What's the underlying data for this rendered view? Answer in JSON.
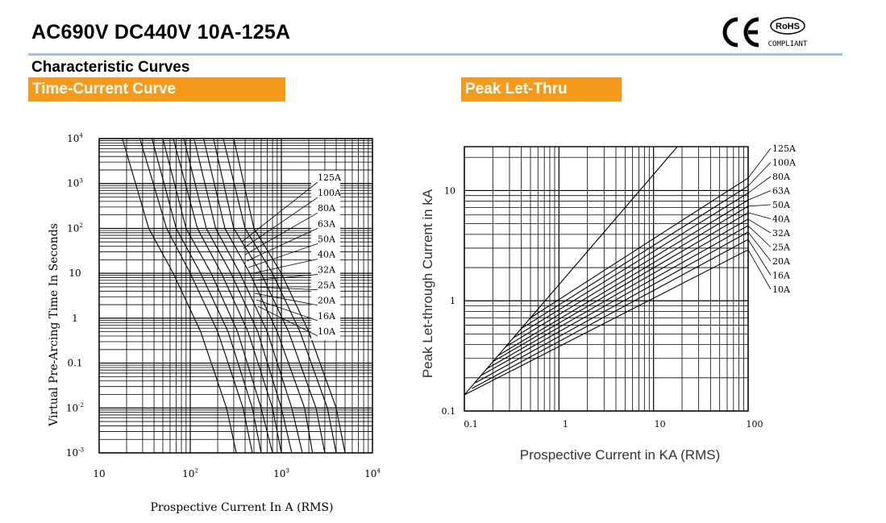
{
  "header": {
    "title": "AC690V DC440V 10A-125A",
    "ce_mark": "CE",
    "rohs_label": "RoHS",
    "compliant_label": "COMPLIANT",
    "rule_color": "#9fc2ea"
  },
  "section": {
    "title": "Characteristic Curves",
    "tab_left": "Time-Current Curve",
    "tab_right": "Peak Let-Thru",
    "tab_color": "#f59a1b"
  },
  "chart_data": [
    {
      "type": "line",
      "title": "Time-Current Curve",
      "xlabel": "Prospective Current In A (RMS)",
      "ylabel": "Virtual Pre-Arcing Time In Seconds",
      "x_scale": "log",
      "y_scale": "log",
      "xlim": [
        10,
        10000
      ],
      "ylim": [
        0.001,
        10000
      ],
      "x_tick_labels": [
        {
          "base": "10",
          "exp": ""
        },
        {
          "base": "10",
          "exp": "2"
        },
        {
          "base": "10",
          "exp": "3"
        },
        {
          "base": "10",
          "exp": "4"
        }
      ],
      "y_tick_labels": [
        {
          "base": "10",
          "exp": "4"
        },
        {
          "base": "10",
          "exp": "3"
        },
        {
          "base": "10",
          "exp": "2"
        },
        {
          "base": "10",
          "exp": ""
        },
        {
          "base": "1",
          "exp": ""
        },
        {
          "base": "0.1",
          "exp": ""
        },
        {
          "base": "10",
          "exp": "-2"
        },
        {
          "base": "10",
          "exp": "-3"
        }
      ],
      "grid": true,
      "legend_box": true,
      "series": [
        {
          "name": "125A",
          "points": [
            [
              300,
              10000
            ],
            [
              500,
              100
            ],
            [
              1000,
              10
            ],
            [
              2000,
              0.5
            ],
            [
              4000,
              0.01
            ],
            [
              5000,
              0.001
            ]
          ]
        },
        {
          "name": "100A",
          "points": [
            [
              230,
              10000
            ],
            [
              400,
              100
            ],
            [
              800,
              10
            ],
            [
              1600,
              0.5
            ],
            [
              3200,
              0.01
            ],
            [
              4000,
              0.001
            ]
          ]
        },
        {
          "name": "80A",
          "points": [
            [
              180,
              10000
            ],
            [
              300,
              100
            ],
            [
              600,
              10
            ],
            [
              1200,
              0.5
            ],
            [
              2400,
              0.01
            ],
            [
              3000,
              0.001
            ]
          ]
        },
        {
          "name": "63A",
          "points": [
            [
              140,
              10000
            ],
            [
              240,
              100
            ],
            [
              450,
              10
            ],
            [
              900,
              0.5
            ],
            [
              1800,
              0.01
            ],
            [
              2200,
              0.001
            ]
          ]
        },
        {
          "name": "50A",
          "points": [
            [
              110,
              10000
            ],
            [
              190,
              100
            ],
            [
              350,
              10
            ],
            [
              700,
              0.5
            ],
            [
              1300,
              0.01
            ],
            [
              1700,
              0.001
            ]
          ]
        },
        {
          "name": "40A",
          "points": [
            [
              85,
              10000
            ],
            [
              150,
              100
            ],
            [
              280,
              10
            ],
            [
              550,
              0.5
            ],
            [
              1000,
              0.01
            ],
            [
              1300,
              0.001
            ]
          ]
        },
        {
          "name": "32A",
          "points": [
            [
              65,
              10000
            ],
            [
              120,
              100
            ],
            [
              220,
              10
            ],
            [
              430,
              0.5
            ],
            [
              800,
              0.01
            ],
            [
              1000,
              0.001
            ]
          ]
        },
        {
          "name": "25A",
          "points": [
            [
              50,
              10000
            ],
            [
              90,
              100
            ],
            [
              170,
              10
            ],
            [
              330,
              0.5
            ],
            [
              600,
              0.01
            ],
            [
              800,
              0.001
            ]
          ]
        },
        {
          "name": "20A",
          "points": [
            [
              38,
              10000
            ],
            [
              70,
              100
            ],
            [
              130,
              10
            ],
            [
              260,
              0.5
            ],
            [
              480,
              0.01
            ],
            [
              600,
              0.001
            ]
          ]
        },
        {
          "name": "16A",
          "points": [
            [
              28,
              10000
            ],
            [
              55,
              100
            ],
            [
              100,
              10
            ],
            [
              200,
              0.5
            ],
            [
              380,
              0.01
            ],
            [
              480,
              0.001
            ]
          ]
        },
        {
          "name": "10A",
          "points": [
            [
              18,
              10000
            ],
            [
              35,
              100
            ],
            [
              65,
              10
            ],
            [
              130,
              0.5
            ],
            [
              250,
              0.01
            ],
            [
              320,
              0.001
            ]
          ]
        }
      ]
    },
    {
      "type": "line",
      "title": "Peak Let-Thru",
      "xlabel": "Prospective Current in KA (RMS)",
      "ylabel": "Peak Let-through Current in kA",
      "x_scale": "log",
      "y_scale": "log",
      "xlim": [
        0.1,
        100
      ],
      "ylim": [
        0.1,
        25
      ],
      "x_tick_labels": [
        "0.1",
        "1",
        "10",
        "100"
      ],
      "y_tick_labels": [
        "10",
        "1",
        "0.1"
      ],
      "grid": true,
      "diagonal": [
        [
          0.1,
          0.14
        ],
        [
          20,
          28
        ]
      ],
      "series": [
        {
          "name": "125A",
          "points": [
            [
              0.5,
              0.7
            ],
            [
              100,
              13
            ]
          ]
        },
        {
          "name": "100A",
          "points": [
            [
              0.4,
              0.56
            ],
            [
              100,
              11
            ]
          ]
        },
        {
          "name": "80A",
          "points": [
            [
              0.33,
              0.46
            ],
            [
              100,
              9.5
            ]
          ]
        },
        {
          "name": "63A",
          "points": [
            [
              0.27,
              0.38
            ],
            [
              100,
              8.2
            ]
          ]
        },
        {
          "name": "50A",
          "points": [
            [
              0.23,
              0.32
            ],
            [
              100,
              7.2
            ]
          ]
        },
        {
          "name": "40A",
          "points": [
            [
              0.2,
              0.28
            ],
            [
              100,
              6.3
            ]
          ]
        },
        {
          "name": "32A",
          "points": [
            [
              0.17,
              0.24
            ],
            [
              100,
              5.5
            ]
          ]
        },
        {
          "name": "25A",
          "points": [
            [
              0.15,
              0.21
            ],
            [
              100,
              4.8
            ]
          ]
        },
        {
          "name": "20A",
          "points": [
            [
              0.13,
              0.18
            ],
            [
              100,
              4.2
            ]
          ]
        },
        {
          "name": "16A",
          "points": [
            [
              0.12,
              0.16
            ],
            [
              100,
              3.6
            ]
          ]
        },
        {
          "name": "10A",
          "points": [
            [
              0.1,
              0.14
            ],
            [
              100,
              2.9
            ]
          ]
        }
      ]
    }
  ]
}
